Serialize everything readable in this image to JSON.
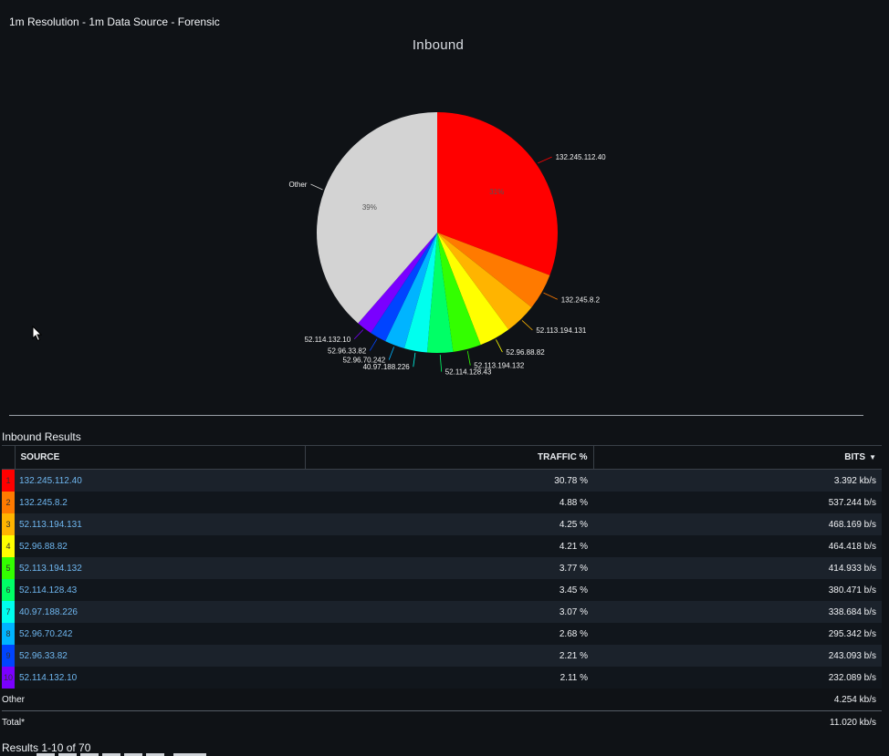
{
  "header": {
    "title": "1m Resolution - 1m Data Source - Forensic"
  },
  "chart_data": {
    "type": "pie",
    "title": "Inbound",
    "slices": [
      {
        "label": "132.245.112.40",
        "value": 30.78,
        "pct_label": "31%",
        "color": "#ff0000"
      },
      {
        "label": "132.245.8.2",
        "value": 4.88,
        "pct_label": "",
        "color": "#ff7a00"
      },
      {
        "label": "52.113.194.131",
        "value": 4.25,
        "pct_label": "",
        "color": "#ffb400"
      },
      {
        "label": "52.96.88.82",
        "value": 4.21,
        "pct_label": "",
        "color": "#ffff00"
      },
      {
        "label": "52.113.194.132",
        "value": 3.77,
        "pct_label": "",
        "color": "#33ff00"
      },
      {
        "label": "52.114.128.43",
        "value": 3.45,
        "pct_label": "",
        "color": "#00ff66"
      },
      {
        "label": "40.97.188.226",
        "value": 3.07,
        "pct_label": "",
        "color": "#00ffee"
      },
      {
        "label": "52.96.70.242",
        "value": 2.68,
        "pct_label": "",
        "color": "#00b4ff"
      },
      {
        "label": "52.96.33.82",
        "value": 2.21,
        "pct_label": "",
        "color": "#0044ff"
      },
      {
        "label": "52.114.132.10",
        "value": 2.11,
        "pct_label": "",
        "color": "#7a00ff"
      },
      {
        "label": "Other",
        "value": 38.59,
        "pct_label": "39%",
        "color": "#d3d3d3"
      }
    ]
  },
  "results": {
    "title": "Inbound Results",
    "columns": {
      "source": "SOURCE",
      "traffic": "TRAFFIC %",
      "bits": "BITS",
      "sort_indicator": "▼"
    },
    "rows": [
      {
        "rank": "1",
        "source": "132.245.112.40",
        "traffic": "30.78 %",
        "bits": "3.392 kb/s",
        "color": "#ff0000"
      },
      {
        "rank": "2",
        "source": "132.245.8.2",
        "traffic": "4.88 %",
        "bits": "537.244 b/s",
        "color": "#ff7a00"
      },
      {
        "rank": "3",
        "source": "52.113.194.131",
        "traffic": "4.25 %",
        "bits": "468.169 b/s",
        "color": "#ffb400"
      },
      {
        "rank": "4",
        "source": "52.96.88.82",
        "traffic": "4.21 %",
        "bits": "464.418 b/s",
        "color": "#ffff00"
      },
      {
        "rank": "5",
        "source": "52.113.194.132",
        "traffic": "3.77 %",
        "bits": "414.933 b/s",
        "color": "#33ff00"
      },
      {
        "rank": "6",
        "source": "52.114.128.43",
        "traffic": "3.45 %",
        "bits": "380.471 b/s",
        "color": "#00ff66"
      },
      {
        "rank": "7",
        "source": "40.97.188.226",
        "traffic": "3.07 %",
        "bits": "338.684 b/s",
        "color": "#00ffee"
      },
      {
        "rank": "8",
        "source": "52.96.70.242",
        "traffic": "2.68 %",
        "bits": "295.342 b/s",
        "color": "#00b4ff"
      },
      {
        "rank": "9",
        "source": "52.96.33.82",
        "traffic": "2.21 %",
        "bits": "243.093 b/s",
        "color": "#0044ff"
      },
      {
        "rank": "10",
        "source": "52.114.132.10",
        "traffic": "2.11 %",
        "bits": "232.089 b/s",
        "color": "#7a00ff"
      }
    ],
    "other": {
      "label": "Other",
      "bits": "4.254 kb/s"
    },
    "total": {
      "label": "Total*",
      "bits": "11.020 kb/s"
    },
    "count": "Results 1-10 of 70"
  }
}
